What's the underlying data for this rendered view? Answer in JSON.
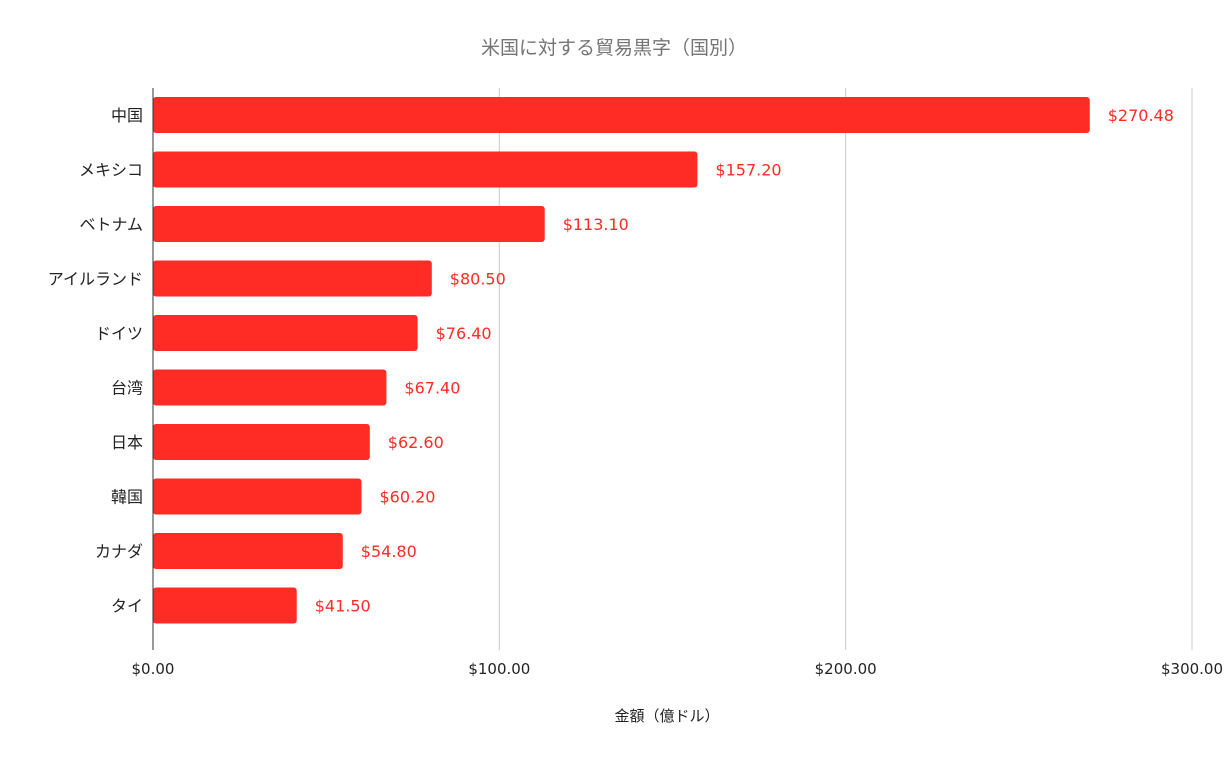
{
  "chart_data": {
    "type": "bar",
    "orientation": "horizontal",
    "title": "米国に対する貿易黒字（国別）",
    "xlabel": "金額（億ドル）",
    "ylabel": "",
    "categories": [
      "中国",
      "メキシコ",
      "ベトナム",
      "アイルランド",
      "ドイツ",
      "台湾",
      "日本",
      "韓国",
      "カナダ",
      "タイ"
    ],
    "values": [
      270.48,
      157.2,
      113.1,
      80.5,
      76.4,
      67.4,
      62.6,
      60.2,
      54.8,
      41.5
    ],
    "data_labels": [
      "$270.48",
      "$157.20",
      "$113.10",
      "$80.50",
      "$76.40",
      "$67.40",
      "$62.60",
      "$60.20",
      "$54.80",
      "$41.50"
    ],
    "xlim": [
      0,
      300
    ],
    "x_ticks": [
      0,
      100,
      200,
      300
    ],
    "x_tick_labels": [
      "$0.00",
      "$100.00",
      "$200.00",
      "$300.00"
    ],
    "grid": true,
    "legend": "none",
    "bar_color": "#ff2b25",
    "label_color": "#ff2b25"
  }
}
